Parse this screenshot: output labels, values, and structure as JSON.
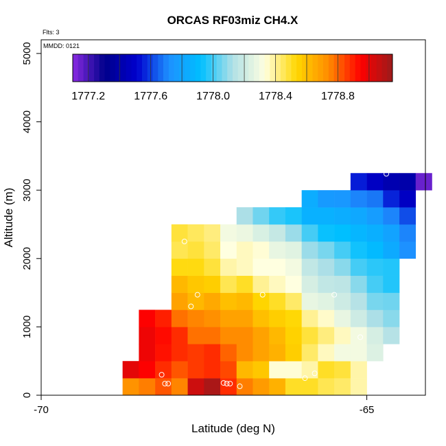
{
  "chart_data": {
    "type": "heatmap",
    "title": "ORCAS RF03miz CH4.X",
    "flights_label": "Flts: 3",
    "date_label": "MMDD: 0121",
    "xlabel": "Latitude (deg N)",
    "ylabel": "Altitude (m)",
    "xlim": [
      -70,
      -64.1
    ],
    "ylim": [
      0,
      5200
    ],
    "x_ticks": [
      -70,
      -65
    ],
    "y_ticks": [
      0,
      1000,
      2000,
      3000,
      4000,
      5000
    ],
    "cell_width_deg": 0.25,
    "cell_height_m": 250,
    "colorbar": {
      "min": 1777.1,
      "max": 1779.15,
      "ticks": [
        1777.2,
        1777.6,
        1778.0,
        1778.4,
        1778.8
      ],
      "tick_labels": [
        "1777.2",
        "1777.6",
        "1778.0",
        "1778.4",
        "1778.8"
      ],
      "colors": [
        "#8a2be2",
        "#00008b",
        "#0000cd",
        "#1e90ff",
        "#00bfff",
        "#b0e0e6",
        "#ffffe0",
        "#ffd700",
        "#ff8c00",
        "#ff0000",
        "#9b1b1b"
      ]
    },
    "columns": [
      {
        "lat": -68.625,
        "cells": [
          [
            0,
            1778.72
          ],
          [
            250,
            1779.0
          ]
        ]
      },
      {
        "lat": -68.375,
        "cells": [
          [
            0,
            1778.76
          ],
          [
            250,
            1778.95
          ],
          [
            500,
            1778.98
          ],
          [
            750,
            1778.98
          ],
          [
            1000,
            1778.95
          ]
        ]
      },
      {
        "lat": -68.125,
        "cells": [
          [
            0,
            1778.82
          ],
          [
            250,
            1778.88
          ],
          [
            500,
            1778.92
          ],
          [
            750,
            1778.93
          ],
          [
            1000,
            1778.9
          ]
        ]
      },
      {
        "lat": -67.875,
        "cells": [
          [
            0,
            1778.75
          ],
          [
            250,
            1778.82
          ],
          [
            500,
            1778.88
          ],
          [
            750,
            1778.88
          ],
          [
            1000,
            1778.78
          ],
          [
            1250,
            1778.68
          ],
          [
            1500,
            1778.62
          ],
          [
            1750,
            1778.52
          ],
          [
            2000,
            1778.46
          ],
          [
            2250,
            1778.48
          ]
        ]
      },
      {
        "lat": -67.625,
        "cells": [
          [
            0,
            1779.05
          ],
          [
            250,
            1778.86
          ],
          [
            500,
            1778.86
          ],
          [
            750,
            1778.78
          ],
          [
            1000,
            1778.75
          ],
          [
            1250,
            1778.62
          ],
          [
            1500,
            1778.58
          ],
          [
            1750,
            1778.52
          ],
          [
            2000,
            1778.48
          ],
          [
            2250,
            1778.45
          ]
        ]
      },
      {
        "lat": -67.375,
        "cells": [
          [
            0,
            1779.12
          ],
          [
            250,
            1778.88
          ],
          [
            500,
            1778.88
          ],
          [
            750,
            1778.78
          ],
          [
            1000,
            1778.73
          ],
          [
            1250,
            1778.66
          ],
          [
            1500,
            1778.56
          ],
          [
            1750,
            1778.48
          ],
          [
            2000,
            1778.44
          ],
          [
            2250,
            1778.42
          ]
        ]
      },
      {
        "lat": -67.125,
        "cells": [
          [
            0,
            1778.88
          ],
          [
            250,
            1778.84
          ],
          [
            500,
            1778.8
          ],
          [
            750,
            1778.74
          ],
          [
            1000,
            1778.68
          ],
          [
            1250,
            1778.6
          ],
          [
            1500,
            1778.46
          ],
          [
            1750,
            1778.38
          ],
          [
            2000,
            1778.33
          ],
          [
            2250,
            1778.3
          ]
        ]
      },
      {
        "lat": -66.875,
        "cells": [
          [
            0,
            1778.76
          ],
          [
            250,
            1778.62
          ],
          [
            500,
            1778.74
          ],
          [
            750,
            1778.74
          ],
          [
            1000,
            1778.68
          ],
          [
            1250,
            1778.62
          ],
          [
            1500,
            1778.5
          ],
          [
            1750,
            1778.36
          ],
          [
            2000,
            1778.36
          ],
          [
            2250,
            1778.28
          ],
          [
            2500,
            1778.12
          ]
        ]
      },
      {
        "lat": -66.625,
        "cells": [
          [
            0,
            1778.7
          ],
          [
            250,
            1778.58
          ],
          [
            500,
            1778.68
          ],
          [
            750,
            1778.68
          ],
          [
            1000,
            1778.6
          ],
          [
            1250,
            1778.54
          ],
          [
            1500,
            1778.4
          ],
          [
            1750,
            1778.33
          ],
          [
            2000,
            1778.34
          ],
          [
            2250,
            1778.23
          ],
          [
            2500,
            1778.05
          ]
        ]
      },
      {
        "lat": -66.375,
        "cells": [
          [
            0,
            1778.64
          ],
          [
            250,
            1778.34
          ],
          [
            500,
            1778.64
          ],
          [
            750,
            1778.62
          ],
          [
            1000,
            1778.56
          ],
          [
            1250,
            1778.5
          ],
          [
            1500,
            1778.36
          ],
          [
            1750,
            1778.33
          ],
          [
            2000,
            1778.27
          ],
          [
            2250,
            1778.18
          ],
          [
            2500,
            1777.98
          ]
        ]
      },
      {
        "lat": -66.125,
        "cells": [
          [
            0,
            1778.5
          ],
          [
            250,
            1778.34
          ],
          [
            500,
            1778.56
          ],
          [
            750,
            1778.55
          ],
          [
            1000,
            1778.53
          ],
          [
            1250,
            1778.44
          ],
          [
            1500,
            1778.33
          ],
          [
            1750,
            1778.3
          ],
          [
            2000,
            1778.25
          ],
          [
            2250,
            1778.1
          ],
          [
            2500,
            1777.95
          ]
        ]
      },
      {
        "lat": -65.875,
        "cells": [
          [
            0,
            1778.5
          ],
          [
            250,
            1778.38
          ],
          [
            500,
            1778.44
          ],
          [
            750,
            1778.48
          ],
          [
            1000,
            1778.4
          ],
          [
            1250,
            1778.27
          ],
          [
            1500,
            1778.22
          ],
          [
            1750,
            1778.17
          ],
          [
            2000,
            1778.1
          ],
          [
            2250,
            1778.0
          ],
          [
            2500,
            1777.86
          ],
          [
            2750,
            1777.84
          ]
        ]
      },
      {
        "lat": -65.625,
        "cells": [
          [
            0,
            1778.46
          ],
          [
            250,
            1778.5
          ],
          [
            500,
            1778.36
          ],
          [
            750,
            1778.42
          ],
          [
            1000,
            1778.35
          ],
          [
            1250,
            1778.25
          ],
          [
            1500,
            1778.17
          ],
          [
            1750,
            1778.12
          ],
          [
            2000,
            1778.06
          ],
          [
            2250,
            1777.93
          ],
          [
            2500,
            1777.86
          ],
          [
            2750,
            1777.76
          ]
        ]
      },
      {
        "lat": -65.375,
        "cells": [
          [
            0,
            1778.44
          ],
          [
            250,
            1778.48
          ],
          [
            500,
            1778.3
          ],
          [
            750,
            1778.36
          ],
          [
            1000,
            1778.27
          ],
          [
            1250,
            1778.2
          ],
          [
            1500,
            1778.16
          ],
          [
            1750,
            1778.08
          ],
          [
            2000,
            1778.0
          ],
          [
            2250,
            1777.92
          ],
          [
            2500,
            1777.84
          ],
          [
            2750,
            1777.75
          ]
        ]
      },
      {
        "lat": -65.125,
        "cells": [
          [
            0,
            1778.38
          ],
          [
            250,
            1778.38
          ],
          [
            500,
            1778.3
          ],
          [
            750,
            1778.3
          ],
          [
            1000,
            1778.2
          ],
          [
            1250,
            1778.14
          ],
          [
            1500,
            1778.08
          ],
          [
            1750,
            1778.0
          ],
          [
            2000,
            1777.94
          ],
          [
            2250,
            1777.88
          ],
          [
            2500,
            1777.82
          ],
          [
            2750,
            1777.7
          ],
          [
            3000,
            1777.55
          ]
        ]
      },
      {
        "lat": -64.875,
        "cells": [
          [
            500,
            1778.24
          ],
          [
            750,
            1778.22
          ],
          [
            1000,
            1778.12
          ],
          [
            1250,
            1778.06
          ],
          [
            1500,
            1778.0
          ],
          [
            1750,
            1777.97
          ],
          [
            2000,
            1777.9
          ],
          [
            2250,
            1777.85
          ],
          [
            2500,
            1777.77
          ],
          [
            2750,
            1777.68
          ],
          [
            3000,
            1777.48
          ]
        ]
      },
      {
        "lat": -64.625,
        "cells": [
          [
            750,
            1778.14
          ],
          [
            1000,
            1778.08
          ],
          [
            1250,
            1778.05
          ],
          [
            1500,
            1777.96
          ],
          [
            1750,
            1777.96
          ],
          [
            2000,
            1777.83
          ],
          [
            2250,
            1777.8
          ],
          [
            2500,
            1777.7
          ],
          [
            2750,
            1777.56
          ],
          [
            3000,
            1777.42
          ]
        ]
      },
      {
        "lat": -64.375,
        "cells": [
          [
            2000,
            1777.72
          ],
          [
            2250,
            1777.7
          ],
          [
            2500,
            1777.62
          ],
          [
            2750,
            1777.48
          ],
          [
            3000,
            1777.4
          ]
        ]
      },
      {
        "lat": -64.125,
        "cells": [
          [
            3000,
            1777.15
          ]
        ]
      }
    ],
    "sample_points": [
      [
        -68.1,
        170
      ],
      [
        -68.05,
        170
      ],
      [
        -68.15,
        300
      ],
      [
        -67.8,
        2250
      ],
      [
        -67.6,
        1470
      ],
      [
        -67.7,
        1300
      ],
      [
        -67.2,
        180
      ],
      [
        -67.15,
        170
      ],
      [
        -67.1,
        170
      ],
      [
        -66.95,
        130
      ],
      [
        -66.6,
        1470
      ],
      [
        -65.95,
        250
      ],
      [
        -65.8,
        320
      ],
      [
        -65.5,
        1470
      ],
      [
        -65.1,
        850
      ],
      [
        -64.7,
        3240
      ]
    ]
  }
}
